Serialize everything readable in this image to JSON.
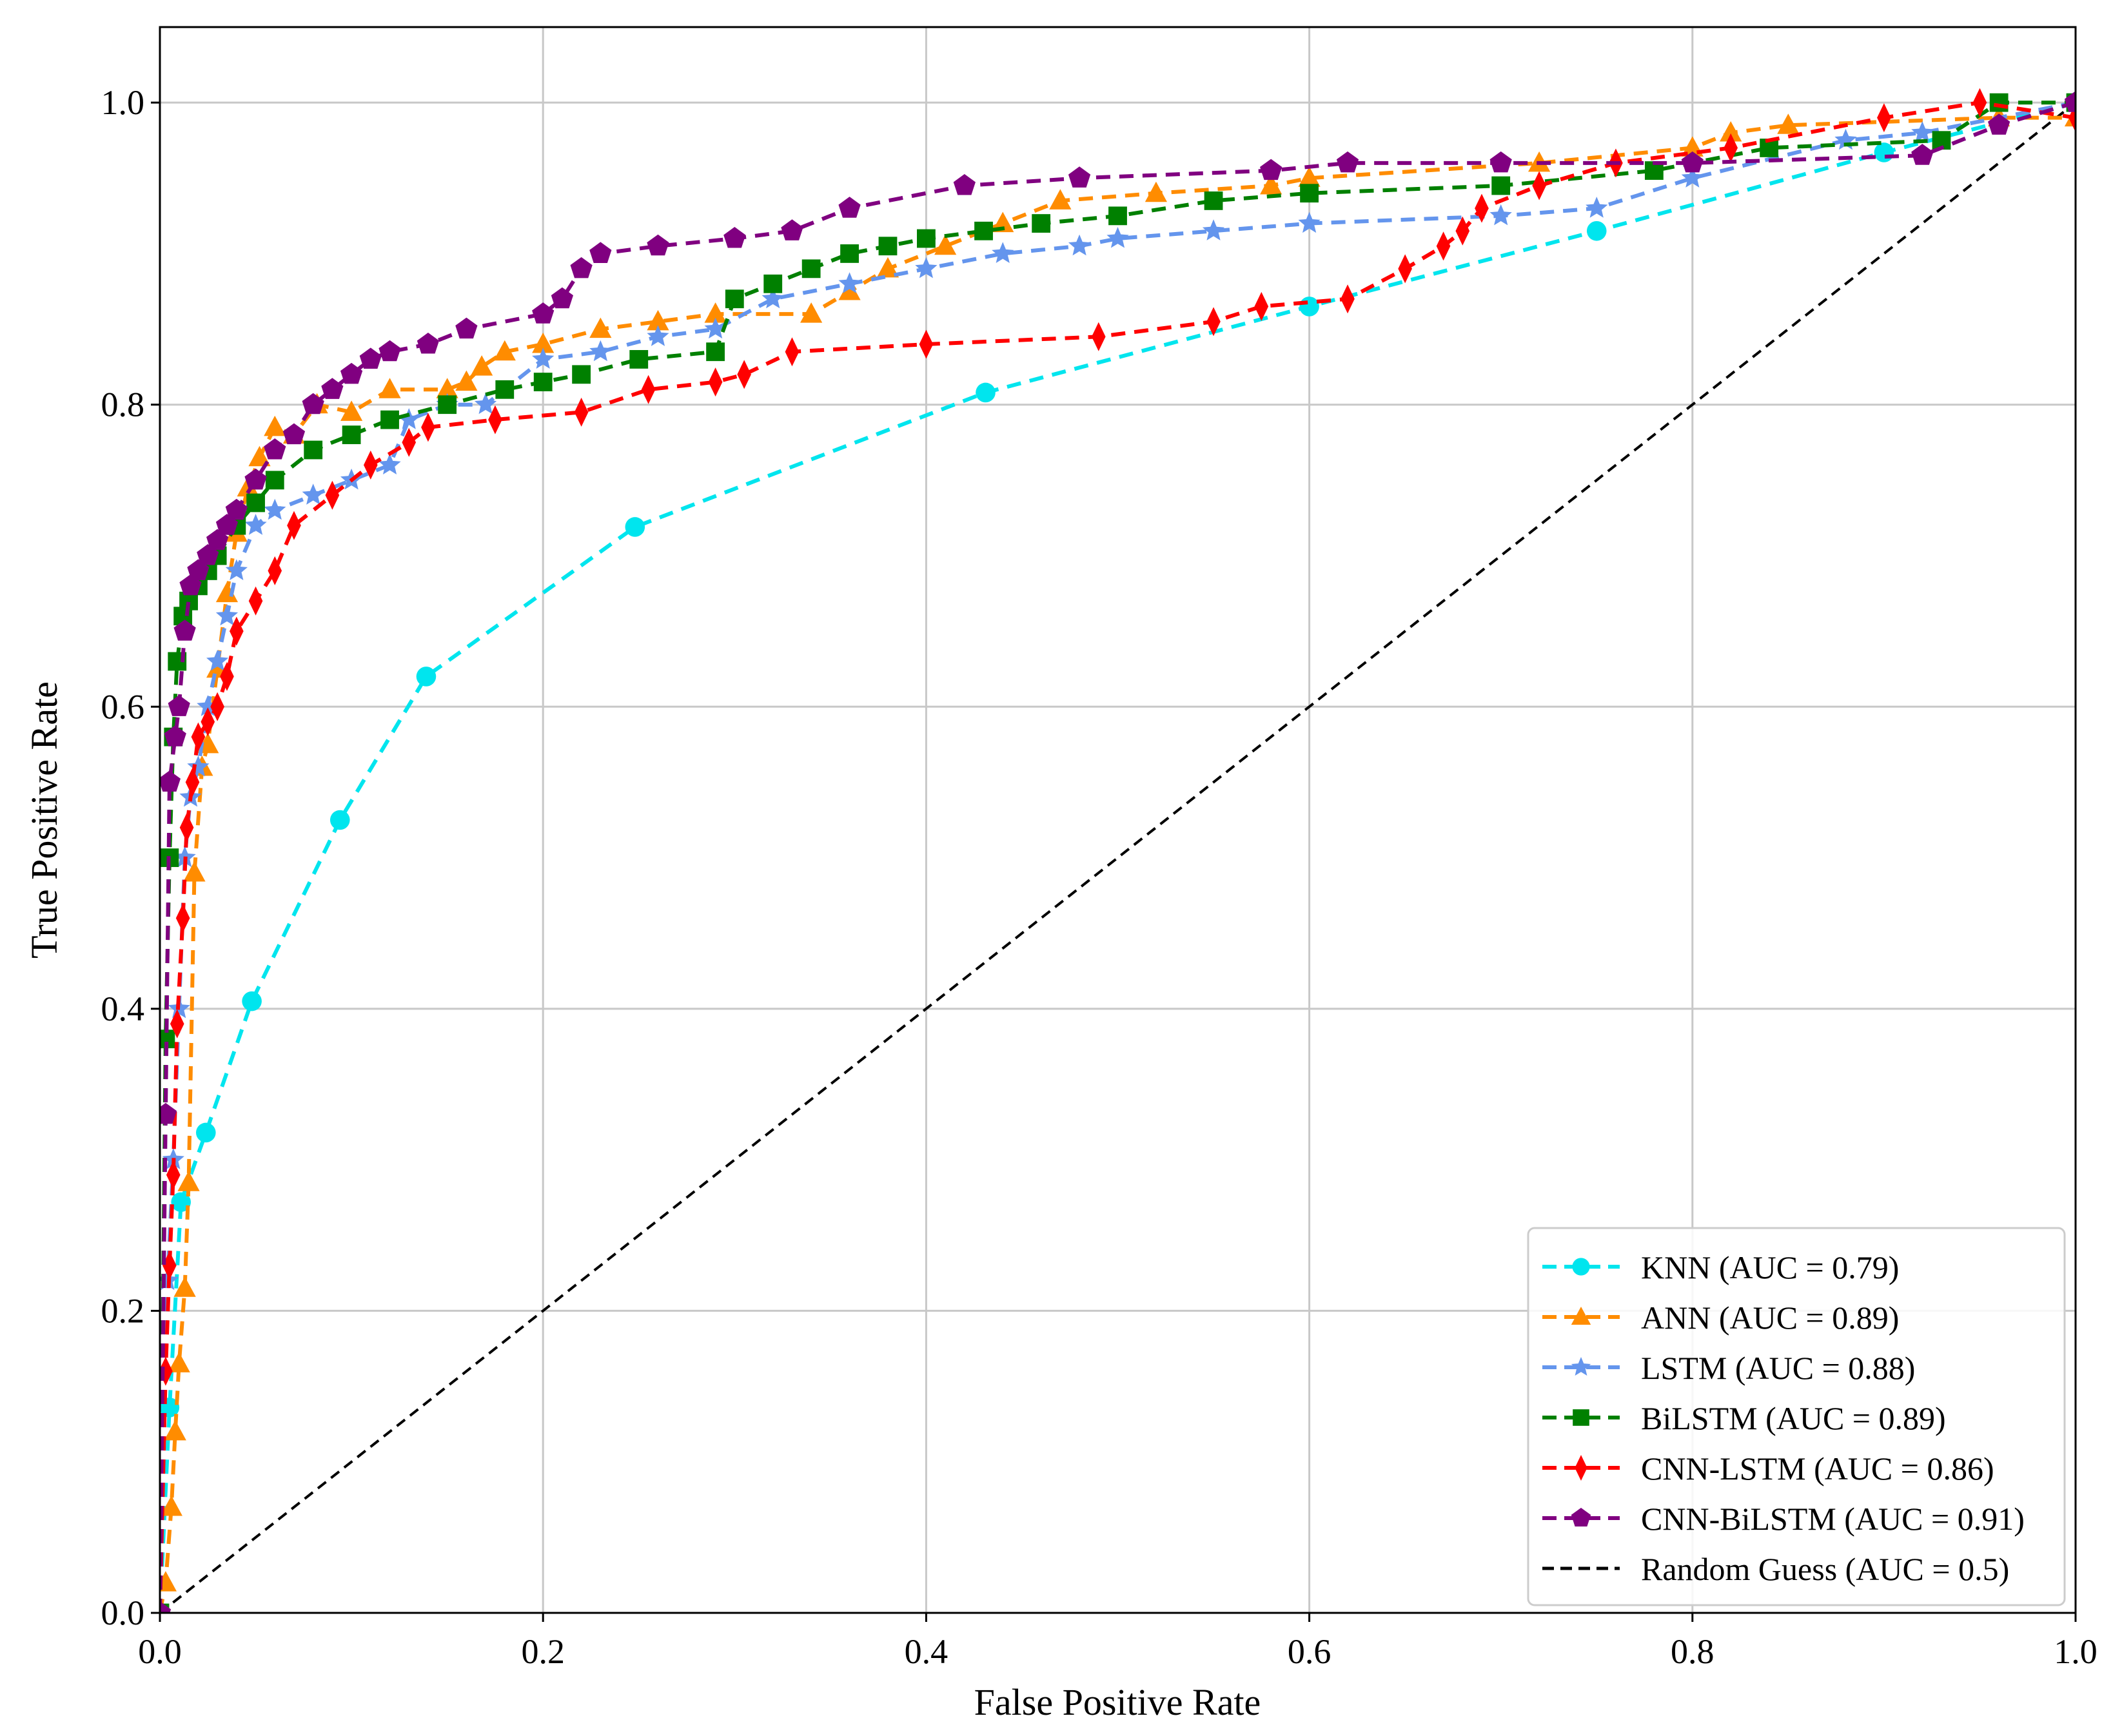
{
  "chart_data": {
    "type": "line",
    "title": "",
    "xlabel": "False Positive Rate",
    "ylabel": "True Positive Rate",
    "xlim": [
      0.0,
      1.0
    ],
    "ylim": [
      0.0,
      1.05
    ],
    "xticks": [
      "0.0",
      "0.2",
      "0.4",
      "0.6",
      "0.8",
      "1.0"
    ],
    "yticks": [
      "0.0",
      "0.2",
      "0.4",
      "0.6",
      "0.8",
      "1.0"
    ],
    "grid": true,
    "legend_position": "lower-right",
    "series": [
      {
        "name": "KNN (AUC = 0.79)",
        "color": "#00e5ee",
        "marker": "circle",
        "linestyle": "dashed",
        "x": [
          0.0,
          0.005,
          0.011,
          0.024,
          0.048,
          0.094,
          0.139,
          0.248,
          0.431,
          0.6,
          0.75,
          0.9,
          1.0
        ],
        "y": [
          0.0,
          0.136,
          0.272,
          0.318,
          0.405,
          0.525,
          0.62,
          0.719,
          0.808,
          0.865,
          0.915,
          0.967,
          1.0
        ]
      },
      {
        "name": "ANN (AUC = 0.89)",
        "color": "#ff8c00",
        "marker": "triangle",
        "linestyle": "dashed",
        "x": [
          0.0,
          0.003,
          0.006,
          0.008,
          0.01,
          0.013,
          0.015,
          0.018,
          0.022,
          0.025,
          0.03,
          0.035,
          0.04,
          0.046,
          0.052,
          0.06,
          0.07,
          0.082,
          0.1,
          0.12,
          0.15,
          0.16,
          0.168,
          0.18,
          0.2,
          0.23,
          0.26,
          0.29,
          0.34,
          0.36,
          0.38,
          0.41,
          0.44,
          0.47,
          0.52,
          0.58,
          0.6,
          0.72,
          0.8,
          0.82,
          0.85,
          0.96,
          1.0
        ],
        "y": [
          0.0,
          0.02,
          0.07,
          0.12,
          0.165,
          0.215,
          0.285,
          0.49,
          0.56,
          0.575,
          0.625,
          0.675,
          0.715,
          0.745,
          0.765,
          0.785,
          0.78,
          0.8,
          0.795,
          0.81,
          0.81,
          0.815,
          0.825,
          0.835,
          0.84,
          0.85,
          0.855,
          0.86,
          0.86,
          0.875,
          0.89,
          0.905,
          0.92,
          0.935,
          0.94,
          0.945,
          0.95,
          0.96,
          0.97,
          0.98,
          0.985,
          0.99,
          0.99
        ]
      },
      {
        "name": "LSTM (AUC = 0.88)",
        "color": "#6495ed",
        "marker": "star",
        "linestyle": "dashed",
        "x": [
          0.0,
          0.004,
          0.007,
          0.01,
          0.013,
          0.016,
          0.02,
          0.025,
          0.03,
          0.035,
          0.04,
          0.05,
          0.06,
          0.08,
          0.1,
          0.12,
          0.13,
          0.15,
          0.17,
          0.2,
          0.23,
          0.26,
          0.29,
          0.32,
          0.36,
          0.4,
          0.44,
          0.48,
          0.5,
          0.55,
          0.6,
          0.7,
          0.75,
          0.8,
          0.88,
          0.92,
          1.0
        ],
        "y": [
          0.0,
          0.22,
          0.3,
          0.4,
          0.5,
          0.54,
          0.56,
          0.6,
          0.63,
          0.66,
          0.69,
          0.72,
          0.73,
          0.74,
          0.75,
          0.76,
          0.79,
          0.8,
          0.8,
          0.83,
          0.835,
          0.845,
          0.85,
          0.87,
          0.88,
          0.89,
          0.9,
          0.905,
          0.91,
          0.915,
          0.92,
          0.925,
          0.93,
          0.95,
          0.975,
          0.98,
          1.0
        ]
      },
      {
        "name": "BiLSTM (AUC = 0.89)",
        "color": "#008000",
        "marker": "square",
        "linestyle": "dashed",
        "x": [
          0.0,
          0.003,
          0.005,
          0.007,
          0.009,
          0.012,
          0.015,
          0.02,
          0.025,
          0.03,
          0.04,
          0.05,
          0.06,
          0.08,
          0.1,
          0.12,
          0.15,
          0.18,
          0.2,
          0.22,
          0.25,
          0.29,
          0.3,
          0.32,
          0.34,
          0.36,
          0.38,
          0.4,
          0.43,
          0.46,
          0.5,
          0.55,
          0.6,
          0.7,
          0.78,
          0.84,
          0.93,
          0.96,
          1.0
        ],
        "y": [
          0.0,
          0.38,
          0.5,
          0.58,
          0.63,
          0.66,
          0.67,
          0.68,
          0.69,
          0.7,
          0.72,
          0.735,
          0.75,
          0.77,
          0.78,
          0.79,
          0.8,
          0.81,
          0.815,
          0.82,
          0.83,
          0.835,
          0.87,
          0.88,
          0.89,
          0.9,
          0.905,
          0.91,
          0.915,
          0.92,
          0.925,
          0.935,
          0.94,
          0.945,
          0.955,
          0.97,
          0.975,
          1.0,
          1.0
        ]
      },
      {
        "name": "CNN-LSTM (AUC = 0.86)",
        "color": "#ff0000",
        "marker": "diamond",
        "linestyle": "dashed",
        "x": [
          0.0,
          0.003,
          0.005,
          0.007,
          0.009,
          0.012,
          0.014,
          0.017,
          0.02,
          0.025,
          0.03,
          0.035,
          0.04,
          0.05,
          0.06,
          0.07,
          0.09,
          0.11,
          0.13,
          0.14,
          0.175,
          0.22,
          0.255,
          0.29,
          0.305,
          0.33,
          0.4,
          0.49,
          0.55,
          0.575,
          0.62,
          0.65,
          0.67,
          0.68,
          0.69,
          0.72,
          0.76,
          0.82,
          0.9,
          0.95,
          1.0
        ],
        "y": [
          0.0,
          0.16,
          0.23,
          0.29,
          0.39,
          0.46,
          0.52,
          0.55,
          0.58,
          0.59,
          0.6,
          0.62,
          0.65,
          0.67,
          0.69,
          0.72,
          0.74,
          0.76,
          0.775,
          0.785,
          0.79,
          0.795,
          0.81,
          0.815,
          0.82,
          0.835,
          0.84,
          0.845,
          0.855,
          0.865,
          0.87,
          0.89,
          0.905,
          0.915,
          0.93,
          0.945,
          0.96,
          0.97,
          0.99,
          1.0,
          0.99
        ]
      },
      {
        "name": "CNN-BiLSTM (AUC = 0.91)",
        "color": "#800080",
        "marker": "pentagon",
        "linestyle": "dashed",
        "x": [
          0.0,
          0.003,
          0.005,
          0.008,
          0.01,
          0.013,
          0.016,
          0.02,
          0.025,
          0.03,
          0.035,
          0.04,
          0.05,
          0.06,
          0.07,
          0.08,
          0.09,
          0.1,
          0.11,
          0.12,
          0.14,
          0.16,
          0.2,
          0.21,
          0.22,
          0.23,
          0.26,
          0.3,
          0.33,
          0.36,
          0.42,
          0.48,
          0.58,
          0.62,
          0.7,
          0.8,
          0.92,
          0.96,
          1.0
        ],
        "y": [
          0.0,
          0.33,
          0.55,
          0.58,
          0.6,
          0.65,
          0.68,
          0.69,
          0.7,
          0.71,
          0.72,
          0.73,
          0.75,
          0.77,
          0.78,
          0.8,
          0.81,
          0.82,
          0.83,
          0.835,
          0.84,
          0.85,
          0.86,
          0.87,
          0.89,
          0.9,
          0.905,
          0.91,
          0.915,
          0.93,
          0.945,
          0.95,
          0.955,
          0.96,
          0.96,
          0.96,
          0.965,
          0.985,
          1.0
        ]
      },
      {
        "name": "Random Guess (AUC = 0.5)",
        "color": "#000000",
        "marker": "none",
        "linestyle": "dashed",
        "x": [
          0.0,
          1.0
        ],
        "y": [
          0.0,
          1.0
        ]
      }
    ]
  }
}
